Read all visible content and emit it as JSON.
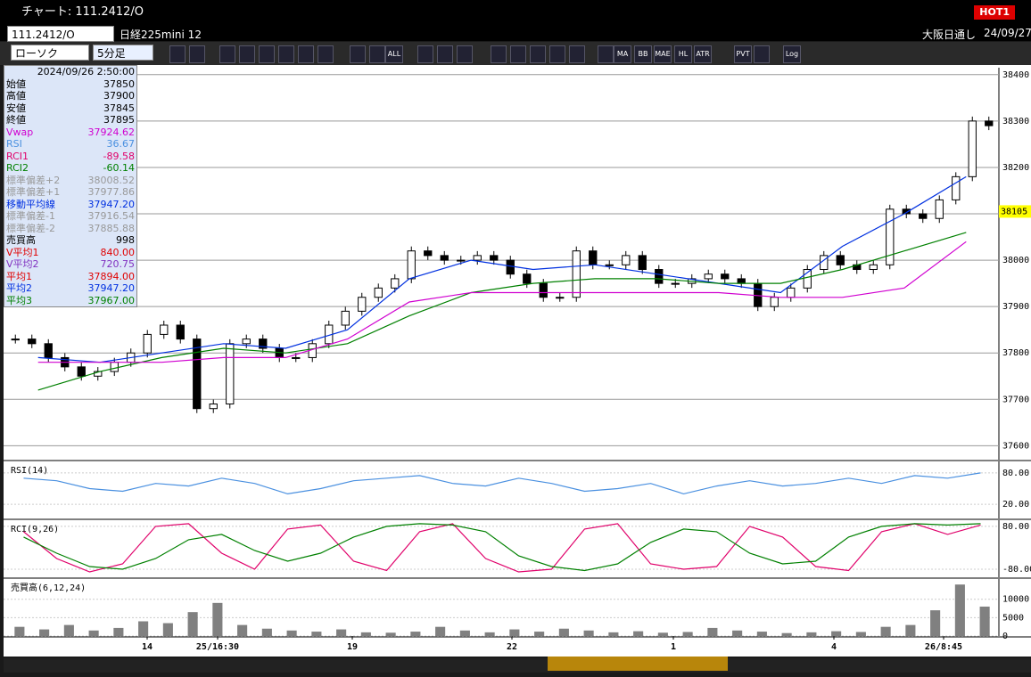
{
  "window": {
    "title": "チャート: 111.2412/O",
    "hot": "HOT1"
  },
  "toolbar": {
    "symbol": "111.2412/O",
    "name": "日経225mini 12",
    "chart_type": "ローソク",
    "period": "5分足",
    "session": "大阪日通し",
    "date": "24/09/27",
    "buttons": [
      "ALL",
      "MA",
      "BB",
      "MAE",
      "HL",
      "ATR",
      "PVT",
      "Log"
    ]
  },
  "info": {
    "date": "2024/09/26 2:50:00",
    "rows": [
      [
        "始値",
        "37850",
        "#000"
      ],
      [
        "高値",
        "37900",
        "#000"
      ],
      [
        "安値",
        "37845",
        "#000"
      ],
      [
        "終値",
        "37895",
        "#000"
      ],
      [
        "Vwap",
        "37924.62",
        "#d000d0"
      ],
      [
        "RSI",
        "36.67",
        "#4a90e0"
      ],
      [
        "RCI1",
        "-89.58",
        "#e0006a"
      ],
      [
        "RCI2",
        "-60.14",
        "#008000"
      ],
      [
        "標準偏差+2",
        "38008.52",
        "#999"
      ],
      [
        "標準偏差+1",
        "37977.86",
        "#999"
      ],
      [
        "移動平均線",
        "37947.20",
        "#0030e0"
      ],
      [
        "標準偏差-1",
        "37916.54",
        "#999"
      ],
      [
        "標準偏差-2",
        "37885.88",
        "#999"
      ],
      [
        "売買高",
        "998",
        "#000"
      ],
      [
        "V平均1",
        "840.00",
        "#e00000"
      ],
      [
        "V平均2",
        "720.75",
        "#8030c0"
      ],
      [
        "平均1",
        "37894.00",
        "#e00000"
      ],
      [
        "平均2",
        "37947.20",
        "#0030e0"
      ],
      [
        "平均3",
        "37967.00",
        "#008000"
      ]
    ]
  },
  "chart_data": [
    {
      "type": "candlestick",
      "ylim": [
        37570,
        38415
      ],
      "yticks": [
        37600,
        37700,
        37800,
        37900,
        38000,
        38100,
        38200,
        38300,
        38400
      ],
      "current_price": 38105,
      "x_labels": [
        "14",
        "25/16:30",
        "19",
        "22",
        "1",
        "4",
        "26/8:45"
      ],
      "values": [
        37830,
        37820,
        37790,
        37770,
        37750,
        37760,
        37780,
        37800,
        37840,
        37860,
        37830,
        37680,
        37690,
        37820,
        37830,
        37810,
        37790,
        37790,
        37820,
        37860,
        37890,
        37920,
        37940,
        37960,
        38020,
        38010,
        38000,
        38000,
        38010,
        38000,
        37970,
        37950,
        37920,
        37920,
        38020,
        37990,
        37990,
        38010,
        37980,
        37950,
        37950,
        37960,
        37970,
        37960,
        37950,
        37900,
        37920,
        37940,
        37980,
        38010,
        37990,
        37980,
        37990,
        38110,
        38100,
        38090,
        38130,
        38180,
        38300,
        38290
      ],
      "series": [
        {
          "name": "平均2",
          "color": "#0030e0",
          "values": [
            37790,
            37780,
            37800,
            37820,
            37810,
            37850,
            37960,
            38000,
            37980,
            37990,
            37970,
            37950,
            37930,
            38030,
            38100,
            38180
          ]
        },
        {
          "name": "平均3",
          "color": "#008000",
          "values": [
            37720,
            37760,
            37790,
            37810,
            37800,
            37820,
            37880,
            37930,
            37950,
            37960,
            37960,
            37950,
            37950,
            37980,
            38020,
            38060
          ]
        },
        {
          "name": "Vwap",
          "color": "#d000d0",
          "values": [
            37780,
            37780,
            37780,
            37790,
            37790,
            37830,
            37910,
            37930,
            37930,
            37930,
            37930,
            37930,
            37920,
            37920,
            37940,
            38040
          ]
        }
      ]
    },
    {
      "type": "line",
      "title": "RSI(14)",
      "ylim": [
        -7,
        102
      ],
      "yticks": [
        {
          "value": 80,
          "label": "80.00"
        },
        {
          "value": 20,
          "label": "20.00"
        }
      ],
      "series": [
        {
          "name": "RSI",
          "color": "#4a90e0",
          "values": [
            70,
            65,
            50,
            45,
            60,
            55,
            70,
            60,
            40,
            50,
            65,
            70,
            75,
            60,
            55,
            70,
            60,
            45,
            50,
            60,
            40,
            55,
            65,
            55,
            60,
            70,
            60,
            75,
            70,
            80
          ]
        }
      ]
    },
    {
      "type": "line",
      "title": "RCI(9,26)",
      "ylim": [
        -110,
        103
      ],
      "yticks": [
        {
          "value": 80,
          "label": "80.00"
        },
        {
          "value": -80,
          "label": "-80.00"
        }
      ],
      "series": [
        {
          "name": "RCI1",
          "color": "#e0006a",
          "values": [
            60,
            -40,
            -90,
            -60,
            80,
            90,
            -20,
            -80,
            70,
            85,
            -50,
            -85,
            60,
            90,
            -40,
            -90,
            -80,
            70,
            90,
            -60,
            -80,
            -70,
            80,
            40,
            -70,
            -85,
            60,
            90,
            50,
            85
          ]
        },
        {
          "name": "RCI2",
          "color": "#008000",
          "values": [
            40,
            -20,
            -70,
            -80,
            -40,
            30,
            50,
            -10,
            -50,
            -20,
            40,
            80,
            90,
            85,
            60,
            -30,
            -70,
            -85,
            -60,
            20,
            70,
            60,
            -20,
            -60,
            -50,
            40,
            80,
            90,
            85,
            90
          ]
        }
      ]
    },
    {
      "type": "bar",
      "title": "売買高(6,12,24)",
      "ylim": [
        0,
        15500
      ],
      "yticks": [
        {
          "value": 10000,
          "label": "10000"
        },
        {
          "value": 5000,
          "label": "5000"
        },
        {
          "value": 0,
          "label": "0"
        }
      ],
      "color": "#808080",
      "values": [
        2500,
        1800,
        3000,
        1500,
        2200,
        4000,
        3500,
        6500,
        9000,
        3000,
        2000,
        1500,
        1200,
        1800,
        1000,
        900,
        1200,
        2500,
        1500,
        1000,
        1800,
        1200,
        2000,
        1500,
        1000,
        1300,
        900,
        1100,
        2200,
        1500,
        1200,
        800,
        1000,
        1300,
        1100,
        2500,
        3000,
        7000,
        14000,
        8000
      ]
    }
  ]
}
